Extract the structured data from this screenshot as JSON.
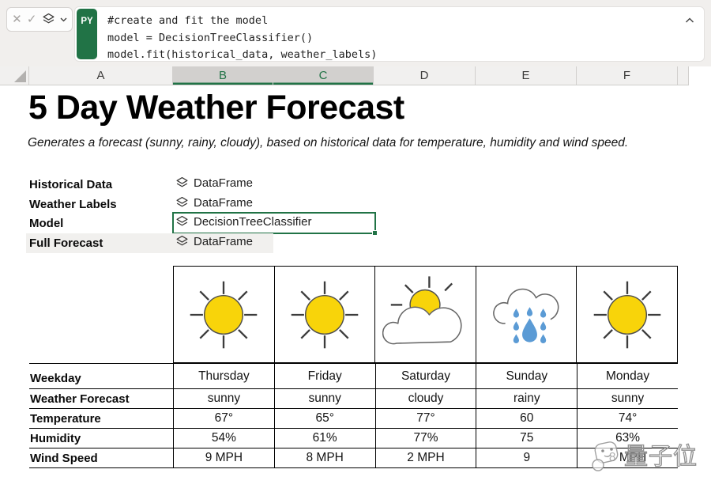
{
  "formula_bar": {
    "language_badge": "PY",
    "code_lines": [
      "#create and fit the model",
      "model = DecisionTreeClassifier()",
      "model.fit(historical_data, weather_labels)"
    ]
  },
  "column_headers": {
    "items": [
      {
        "label": "A",
        "selected": false
      },
      {
        "label": "B",
        "selected": true
      },
      {
        "label": "C",
        "selected": true
      },
      {
        "label": "D",
        "selected": false
      },
      {
        "label": "E",
        "selected": false
      },
      {
        "label": "F",
        "selected": false
      }
    ]
  },
  "sheet": {
    "title": "5 Day Weather Forecast",
    "subtitle": "Generates a forecast (sunny, rainy, cloudy), based on historical data for temperature, humidity and wind speed.",
    "variables": [
      {
        "label": "Historical Data",
        "value": "DataFrame",
        "icon": "python-object-icon",
        "selected": false,
        "highlighted": false
      },
      {
        "label": "Weather Labels",
        "value": "DataFrame",
        "icon": "python-object-icon",
        "selected": false,
        "highlighted": false
      },
      {
        "label": "Model",
        "value": "DecisionTreeClassifier",
        "icon": "python-object-icon",
        "selected": true,
        "highlighted": false
      },
      {
        "label": "Full Forecast",
        "value": "DataFrame",
        "icon": "python-object-icon",
        "selected": false,
        "highlighted": true
      }
    ],
    "forecast_table": {
      "weather_icons": [
        "sunny",
        "sunny",
        "partly-cloudy",
        "rainy",
        "sunny"
      ],
      "rows": [
        {
          "label": "Weekday",
          "values": [
            "Thursday",
            "Friday",
            "Saturday",
            "Sunday",
            "Monday"
          ]
        },
        {
          "label": "Weather Forecast",
          "values": [
            "sunny",
            "sunny",
            "cloudy",
            "rainy",
            "sunny"
          ]
        },
        {
          "label": "Temperature",
          "values": [
            "67°",
            "65°",
            "77°",
            "60",
            "74°"
          ]
        },
        {
          "label": "Humidity",
          "values": [
            "54%",
            "61%",
            "77%",
            "75",
            "63%"
          ]
        },
        {
          "label": "Wind Speed",
          "values": [
            "9 MPH",
            "8 MPH",
            "2 MPH",
            "9",
            "8 MPH"
          ]
        }
      ]
    }
  },
  "watermark": {
    "text": "量子位"
  },
  "icons": {
    "cancel": "✕",
    "confirm": "✓"
  },
  "colors": {
    "excel_green": "#217346",
    "sun_yellow": "#F8D40A",
    "rain_blue": "#5B9BD5",
    "header_bg": "#f1f0ef",
    "header_selected_bg": "#d2d0ce",
    "topbar_bg": "#f1efed",
    "highlight_row_bg": "#f1f0ee",
    "table_border": "#000000"
  }
}
